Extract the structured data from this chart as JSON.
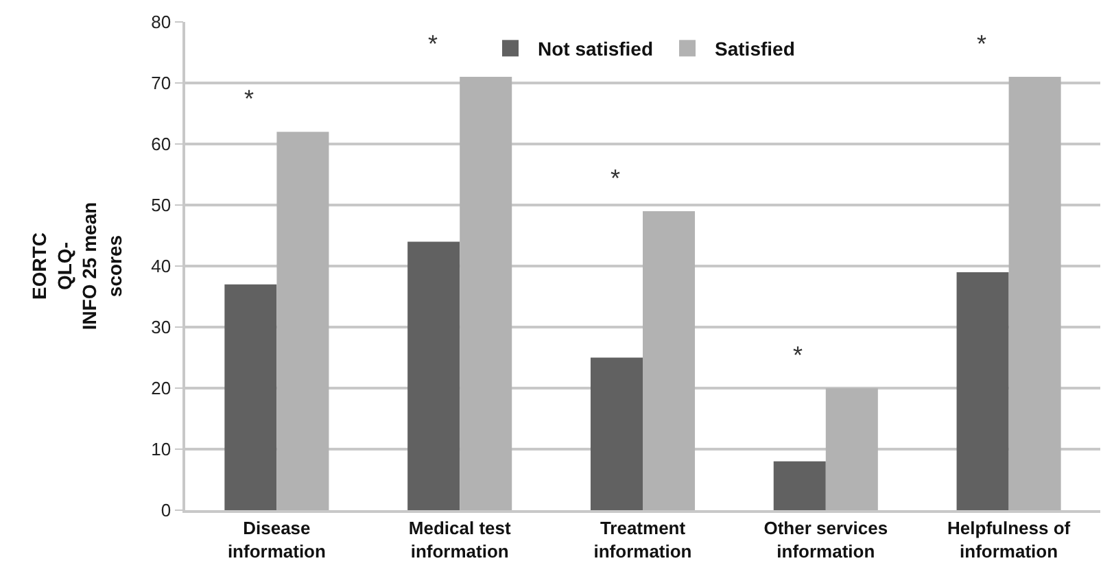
{
  "chart_data": {
    "type": "bar",
    "ylabel": "EORTC\nQLQ-\nINFO 25 mean\nscores",
    "categories": [
      "Disease information",
      "Medical test information",
      "Treatment information",
      "Other services information",
      "Helpfulness of information"
    ],
    "series": [
      {
        "name": "Not satisfied",
        "color": "#616161",
        "values": [
          37,
          44,
          25,
          8,
          39
        ]
      },
      {
        "name": "Satisfied",
        "color": "#b2b2b2",
        "values": [
          62,
          71,
          49,
          20,
          71
        ]
      }
    ],
    "ylim": [
      0,
      80
    ],
    "yticks": [
      0,
      10,
      20,
      30,
      40,
      50,
      60,
      70,
      80
    ],
    "grid": "y",
    "legend": "top",
    "annotations": [
      "*",
      "*",
      "*",
      "*",
      "*"
    ]
  }
}
